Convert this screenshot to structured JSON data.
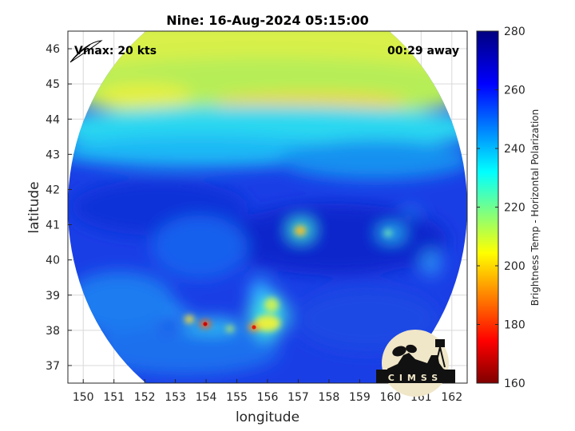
{
  "chart_data": {
    "type": "heatmap",
    "title": "Nine: 16-Aug-2024 05:15:00",
    "xlabel": "longitude",
    "ylabel": "latitude",
    "xlim": [
      149.5,
      162.5
    ],
    "ylim": [
      36.5,
      46.5
    ],
    "x_ticks": [
      150,
      151,
      152,
      153,
      154,
      155,
      156,
      157,
      158,
      159,
      160,
      161,
      162
    ],
    "y_ticks": [
      37,
      38,
      39,
      40,
      41,
      42,
      43,
      44,
      45,
      46
    ],
    "grid": true,
    "colorbar": {
      "label": "Brightness Temp - Horizontal Polarization",
      "range": [
        160,
        280
      ],
      "ticks": [
        160,
        180,
        200,
        220,
        240,
        260,
        280
      ],
      "colormap": "jet",
      "colors": [
        "#800000",
        "#ff0000",
        "#ffff00",
        "#00ffff",
        "#0000ff",
        "#000080"
      ]
    },
    "annotations": {
      "vmax": "Vmax: 20 kts",
      "time_offset": "00:29 away"
    },
    "swath": {
      "center_lon": 156,
      "center_lat": 41.5,
      "lon_radius": 6.5,
      "lat_radius": 6.3
    },
    "features": [
      {
        "name": "cold-band-north",
        "lon": 156,
        "lat": 44.4,
        "value": 205
      },
      {
        "name": "convection-east",
        "lon": 157.1,
        "lat": 40.8,
        "value": 205
      },
      {
        "name": "convection-center",
        "lon": 155.6,
        "lat": 38.0,
        "value": 195
      },
      {
        "name": "convection-west",
        "lon": 153.9,
        "lat": 38.1,
        "value": 185
      }
    ],
    "logo": "CIMSS"
  }
}
